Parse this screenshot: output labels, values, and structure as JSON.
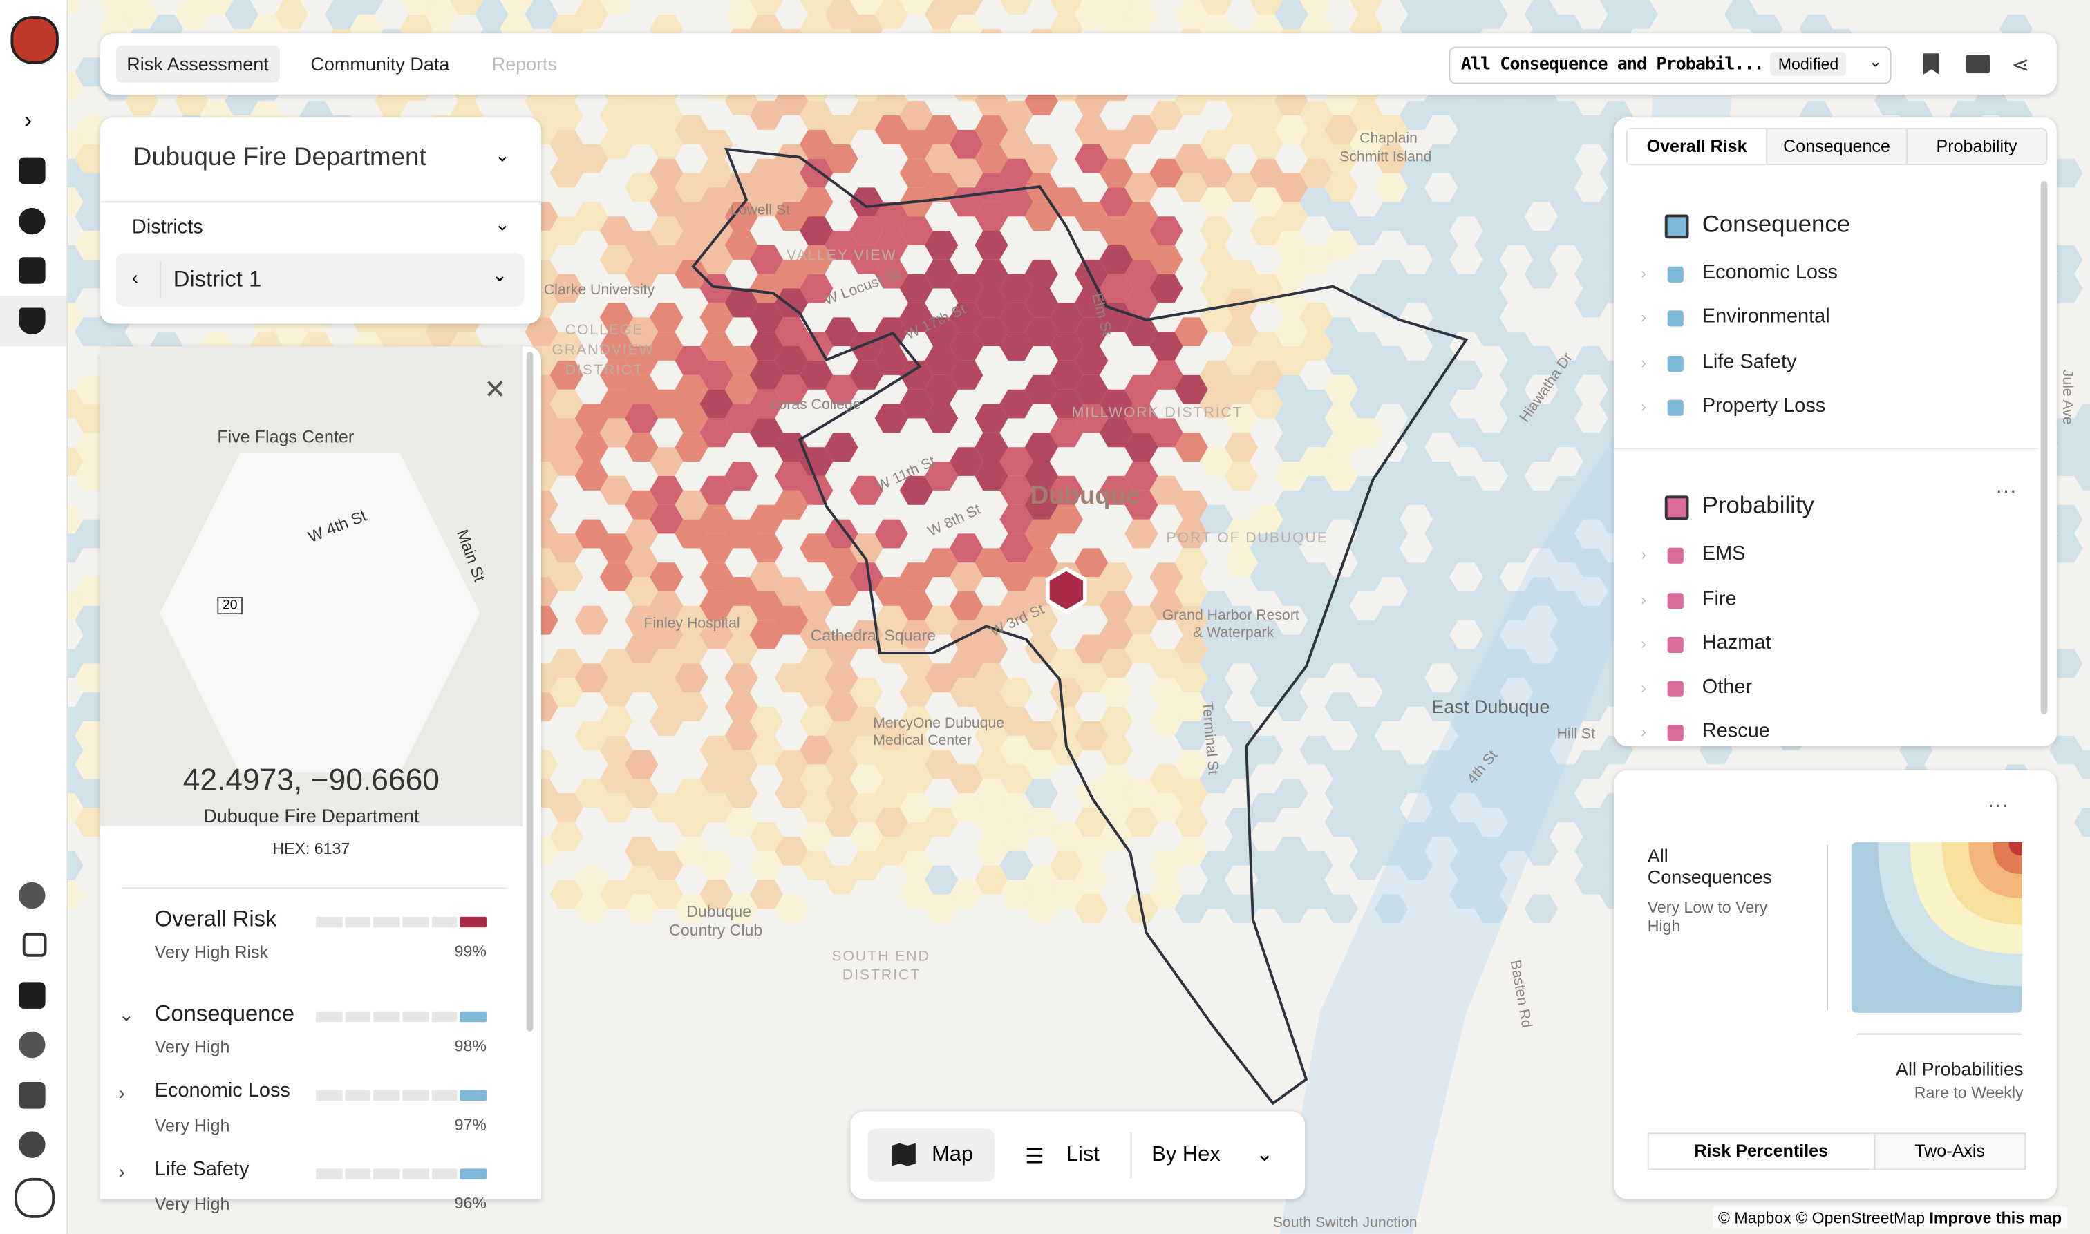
{
  "top_bar": {
    "tabs": [
      "Risk Assessment",
      "Community Data",
      "Reports"
    ],
    "scenario": "All Consequence and Probabil...",
    "status": "Modified"
  },
  "location_panel": {
    "department": "Dubuque Fire Department",
    "filter": "Districts",
    "district": "District 1"
  },
  "detail_panel": {
    "place": "Five Flags Center",
    "streets": [
      "W 4th St",
      "Main St"
    ],
    "route": "20",
    "coordinates": "42.4973, −90.6660",
    "department": "Dubuque Fire Department",
    "hex": "HEX: 6137",
    "risks": [
      {
        "name": "Overall Risk",
        "level": "Very High Risk",
        "percent": "99%"
      },
      {
        "name": "Consequence",
        "level": "Very High",
        "percent": "98%"
      },
      {
        "name": "Economic Loss",
        "level": "Very High",
        "percent": "97%"
      },
      {
        "name": "Life Safety",
        "level": "Very High",
        "percent": "96%"
      }
    ]
  },
  "layers_panel": {
    "tabs": [
      "Overall Risk",
      "Consequence",
      "Probability"
    ],
    "groups": [
      {
        "name": "Consequence",
        "color": "#7fb7d6",
        "items": [
          "Economic Loss",
          "Environmental",
          "Life Safety",
          "Property Loss"
        ]
      },
      {
        "name": "Probability",
        "color": "#d96a9e",
        "items": [
          "EMS",
          "Fire",
          "Hazmat",
          "Other",
          "Rescue"
        ]
      }
    ]
  },
  "legend": {
    "y_title": "All Consequences",
    "y_range": "Very Low to Very High",
    "x_title": "All Probabilities",
    "x_range": "Rare to Weekly",
    "modes": [
      "Risk Percentiles",
      "Two-Axis"
    ]
  },
  "view_bar": {
    "modes": [
      "Map",
      "List"
    ],
    "grouping": "By Hex"
  },
  "map_labels": [
    "Dubuque",
    "East Dubuque",
    "Valley View",
    "Millwork District",
    "Port of Dubuque",
    "Grand Harbor Resort",
    "& Waterpark",
    "Cathedral Square",
    "Finley Hospital",
    "MercyOne Dubuque",
    "Medical Center",
    "Dubuque",
    "Country Club",
    "South End",
    "District",
    "College",
    "Grandview",
    "District",
    "Clarke University",
    "Loras College",
    "Hiawatha Dr",
    "Hill St",
    "4th St",
    "Basten Rd",
    "Jule Ave",
    "South Switch Junction",
    "Lowell St",
    "W Locust St",
    "W 17th St",
    "W 11th St",
    "W 8th St",
    "W 3rd St",
    "Elm St",
    "Terminal St",
    "Chaplain",
    "Schmitt Island"
  ],
  "attribution": {
    "text": "© Mapbox © OpenStreetMap",
    "link": "Improve this map"
  }
}
